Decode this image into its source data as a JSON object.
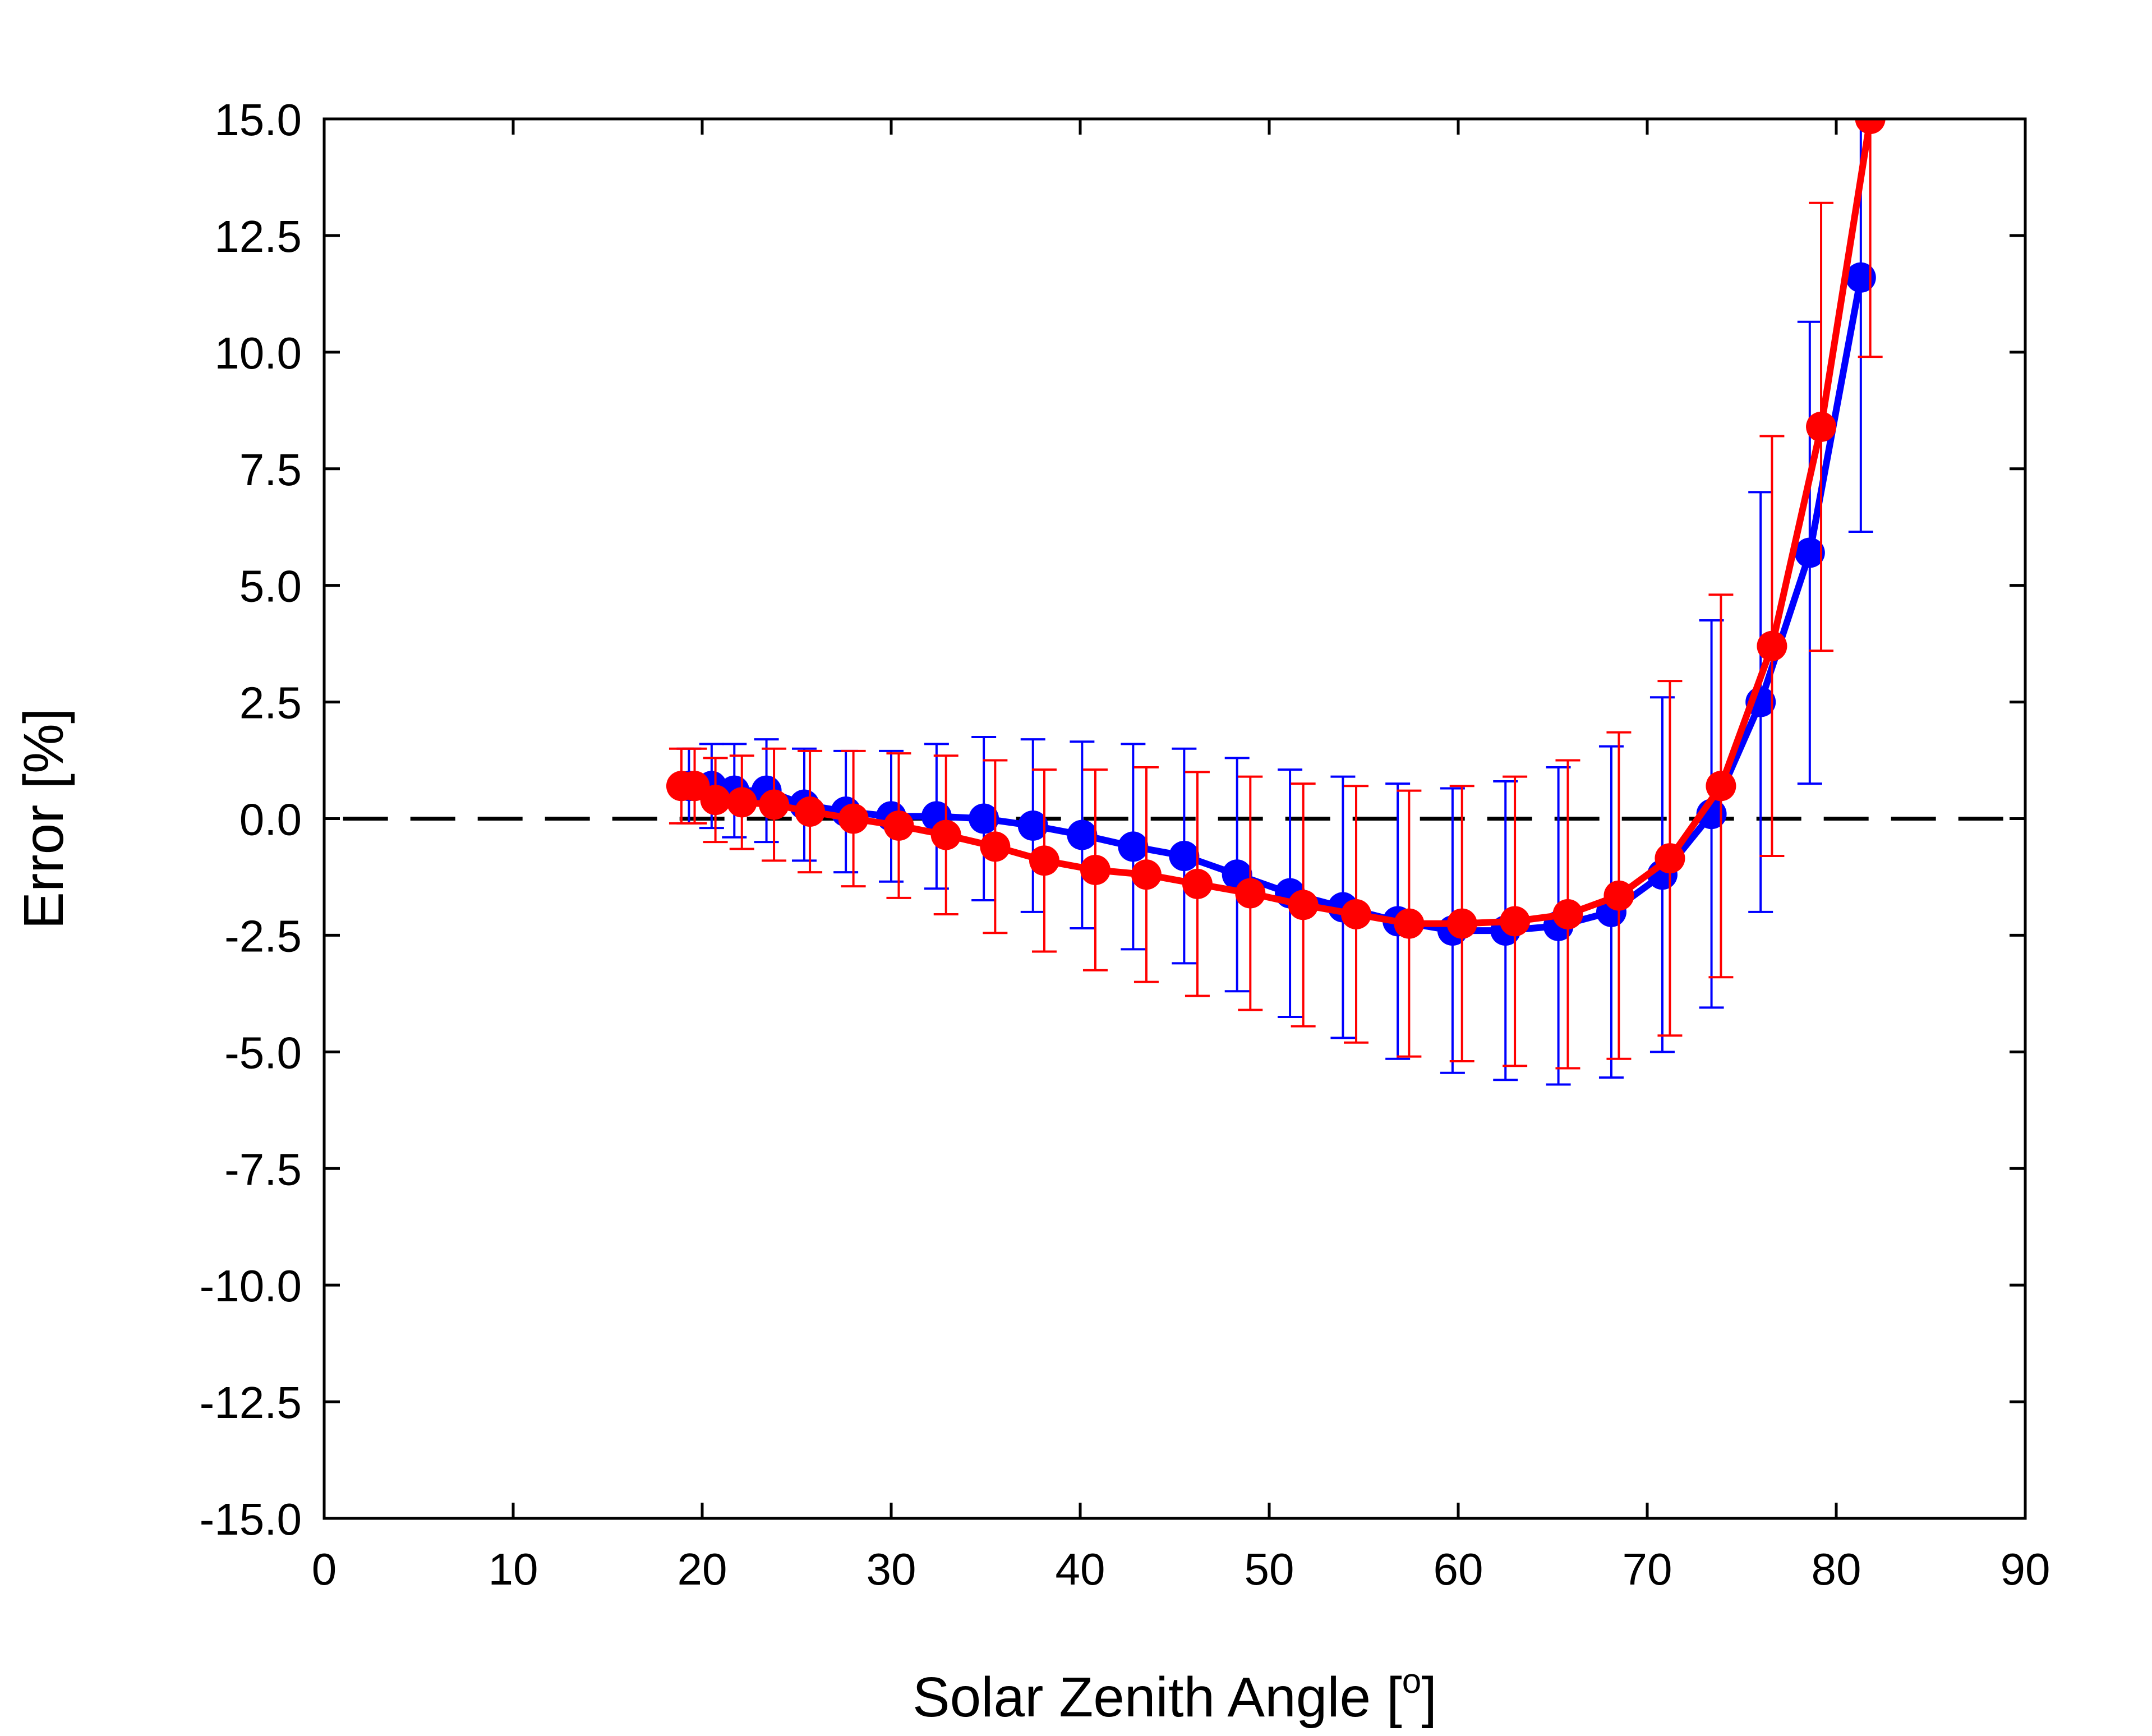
{
  "chart_data": {
    "type": "line",
    "title": "",
    "xlabel_main": "Solar Zenith Angle [",
    "xlabel_sup": "o",
    "xlabel_close": "]",
    "ylabel": "Error [%]",
    "xlim": [
      0,
      90
    ],
    "ylim": [
      -15,
      15
    ],
    "x_ticks": [
      0,
      10,
      20,
      30,
      40,
      50,
      60,
      70,
      80,
      90
    ],
    "x_tick_labels": [
      "0",
      "10",
      "20",
      "30",
      "40",
      "50",
      "60",
      "70",
      "80",
      "90"
    ],
    "y_ticks": [
      -15,
      -12.5,
      -10,
      -7.5,
      -5,
      -2.5,
      0,
      2.5,
      5,
      7.5,
      10,
      12.5,
      15
    ],
    "y_tick_labels": [
      "-15.0",
      "-12.5",
      "-10.0",
      "-7.5",
      "-5.0",
      "-2.5",
      "0.0",
      "2.5",
      "5.0",
      "7.5",
      "10.0",
      "12.5",
      "15.0"
    ],
    "grid": false,
    "legend": false,
    "reference_line": {
      "y": 0,
      "style": "dashed",
      "color": "#000000"
    },
    "series": [
      {
        "color": "#0000ff",
        "x": [
          19.3,
          20.5,
          21.7,
          23.4,
          25.4,
          27.6,
          30.0,
          32.4,
          34.9,
          37.5,
          40.1,
          42.8,
          45.5,
          48.3,
          51.1,
          53.9,
          56.8,
          59.7,
          62.5,
          65.3,
          68.1,
          70.8,
          73.4,
          76.0,
          78.6,
          81.3
        ],
        "y": [
          0.7,
          0.7,
          0.6,
          0.6,
          0.3,
          0.15,
          0.05,
          0.05,
          0.0,
          -0.15,
          -0.35,
          -0.6,
          -0.8,
          -1.2,
          -1.6,
          -1.9,
          -2.2,
          -2.4,
          -2.4,
          -2.3,
          -2.0,
          -1.2,
          0.1,
          2.5,
          5.7,
          11.6
        ],
        "err": [
          0.8,
          0.9,
          1.0,
          1.1,
          1.2,
          1.3,
          1.4,
          1.55,
          1.75,
          1.85,
          2.0,
          2.2,
          2.3,
          2.5,
          2.65,
          2.8,
          2.95,
          3.05,
          3.2,
          3.4,
          3.55,
          3.8,
          4.15,
          4.5,
          4.95,
          5.45
        ]
      },
      {
        "color": "#ff0000",
        "x": [
          18.9,
          19.6,
          20.7,
          22.1,
          23.8,
          25.7,
          28.0,
          30.4,
          32.9,
          35.5,
          38.1,
          40.8,
          43.5,
          46.2,
          49.0,
          51.8,
          54.6,
          57.4,
          60.2,
          63.0,
          65.8,
          68.5,
          71.2,
          73.9,
          76.6,
          79.2,
          81.8
        ],
        "y": [
          0.7,
          0.7,
          0.4,
          0.35,
          0.3,
          0.15,
          0.0,
          -0.15,
          -0.35,
          -0.6,
          -0.9,
          -1.1,
          -1.2,
          -1.4,
          -1.6,
          -1.85,
          -2.05,
          -2.25,
          -2.25,
          -2.2,
          -2.05,
          -1.65,
          -0.85,
          0.7,
          3.7,
          8.4,
          15.0
        ],
        "err": [
          0.8,
          0.8,
          0.9,
          1.0,
          1.2,
          1.3,
          1.45,
          1.55,
          1.7,
          1.85,
          1.95,
          2.15,
          2.3,
          2.4,
          2.5,
          2.6,
          2.75,
          2.85,
          2.95,
          3.1,
          3.3,
          3.5,
          3.8,
          4.1,
          4.5,
          4.8,
          5.1
        ]
      }
    ]
  }
}
